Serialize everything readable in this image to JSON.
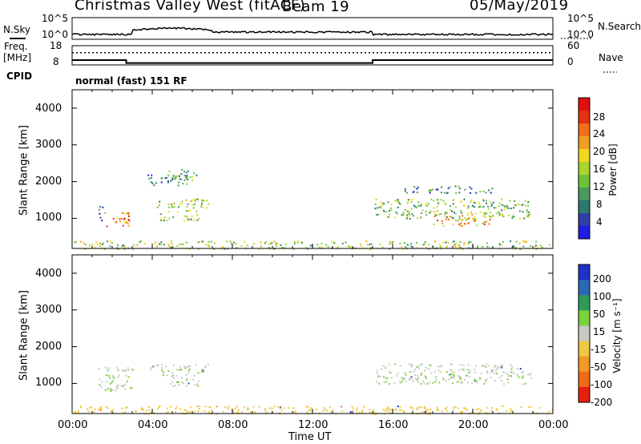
{
  "header": {
    "title": "Christmas Valley West (fitACF)",
    "beam": "Beam 19",
    "date": "05/May/2019"
  },
  "nsky_panel": {
    "left_label": "N.Sky",
    "right_label": "N.Search",
    "left_ticks": [
      "10^5",
      "10^0"
    ],
    "right_ticks": [
      "10^5",
      "10^0"
    ]
  },
  "freq_panel": {
    "left_label_line1": "Freq.",
    "left_label_line2": "[MHz]",
    "right_label": "Nave",
    "left_ticks": [
      "18",
      "8"
    ],
    "right_ticks": [
      "60",
      "0"
    ]
  },
  "cpid": {
    "label": "CPID",
    "value": "normal (fast) 151 RF"
  },
  "power_panel": {
    "ylabel": "Slant Range [km]",
    "y_ticks": [
      "4000",
      "3000",
      "2000",
      "1000"
    ],
    "colorbar_label": "Power [dB]",
    "colorbar_ticks": [
      "28",
      "24",
      "20",
      "16",
      "12",
      "8",
      "4"
    ],
    "colors": [
      "#1e1ee6",
      "#2f3fa8",
      "#2a7a70",
      "#4a9a60",
      "#6ec23a",
      "#a8d62c",
      "#f0d820",
      "#f0a020",
      "#f07018",
      "#e63010",
      "#e01010"
    ]
  },
  "velocity_panel": {
    "ylabel": "Slant Range [km]",
    "y_ticks": [
      "4000",
      "3000",
      "2000",
      "1000"
    ],
    "colorbar_label": "Velocity [m s⁻¹]",
    "colorbar_ticks": [
      "200",
      "100",
      "50",
      "15",
      "-15",
      "-50",
      "-100",
      "-200"
    ],
    "colors": [
      "#1e32c8",
      "#2a6ab4",
      "#2e9a5a",
      "#7ad23c",
      "#c8c8c4",
      "#f0c840",
      "#f09a28",
      "#f06a18",
      "#e61e10"
    ]
  },
  "x_axis": {
    "label": "Time UT",
    "ticks": [
      "00:00",
      "04:00",
      "08:00",
      "12:00",
      "16:00",
      "20:00",
      "00:00"
    ]
  },
  "chart_data": {
    "type": "heatmap",
    "x_range_hours": [
      0,
      24
    ],
    "y_range_km": [
      180,
      4500
    ],
    "power_echo_regions": [
      {
        "t": [
          1.6,
          2.9
        ],
        "r": [
          800,
          1200
        ],
        "power_db": 24
      },
      {
        "t": [
          1.3,
          1.6
        ],
        "r": [
          950,
          1350
        ],
        "power_db": 6
      },
      {
        "t": [
          3.7,
          6.8
        ],
        "r": [
          1300,
          1550
        ],
        "power_db": 14
      },
      {
        "t": [
          4.3,
          6.3
        ],
        "r": [
          950,
          1250
        ],
        "power_db": 14
      },
      {
        "t": [
          3.7,
          6.0
        ],
        "r": [
          1900,
          2250
        ],
        "power_db": 6
      },
      {
        "t": [
          4.8,
          6.2
        ],
        "r": [
          2050,
          2350
        ],
        "power_db": 10
      },
      {
        "t": [
          15.1,
          22.9
        ],
        "r": [
          1000,
          1550
        ],
        "power_db": 12
      },
      {
        "t": [
          18.0,
          21.0
        ],
        "r": [
          800,
          1150
        ],
        "power_db": 20
      },
      {
        "t": [
          16.5,
          21.0
        ],
        "r": [
          1700,
          1900
        ],
        "power_db": 6
      },
      {
        "t": [
          0,
          24
        ],
        "r": [
          180,
          400
        ],
        "power_db": 14
      }
    ],
    "velocity_echo_regions": [
      {
        "t": [
          1.3,
          3.0
        ],
        "r": [
          800,
          1450
        ],
        "velocity": 0
      },
      {
        "t": [
          3.7,
          6.8
        ],
        "r": [
          1300,
          1550
        ],
        "velocity": 0
      },
      {
        "t": [
          4.3,
          6.3
        ],
        "r": [
          950,
          1250
        ],
        "velocity": 0
      },
      {
        "t": [
          15.1,
          22.9
        ],
        "r": [
          1000,
          1550
        ],
        "velocity": 0
      },
      {
        "t": [
          0,
          24
        ],
        "r": [
          180,
          400
        ],
        "velocity": -30
      }
    ],
    "frequency_mhz_segments": [
      {
        "t": [
          0,
          2.7
        ],
        "freq": 10.5
      },
      {
        "t": [
          2.7,
          15.0
        ],
        "freq": 9.0
      },
      {
        "t": [
          15.0,
          24
        ],
        "freq": 10.5
      }
    ],
    "nave_level": 38
  }
}
